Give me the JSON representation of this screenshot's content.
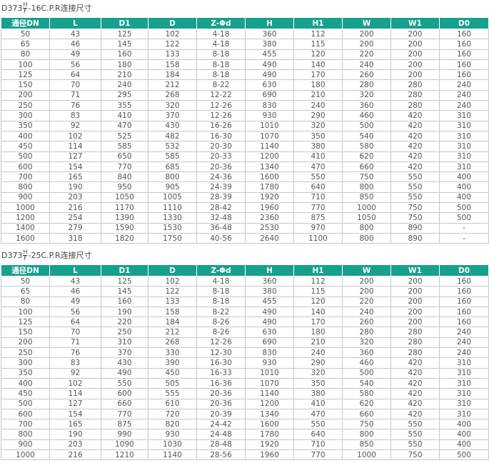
{
  "tables": [
    {
      "title": {
        "prefix": "D373",
        "top": "H",
        "bottom": "F",
        "suffix": "-16C.P.R连接尺寸"
      },
      "header": [
        "通径DN",
        "L",
        "D1",
        "D",
        "Z-Φd",
        "H",
        "H1",
        "W",
        "W1",
        "D0"
      ],
      "rows": [
        [
          50,
          43,
          125,
          102,
          "4-18",
          360,
          112,
          200,
          200,
          160
        ],
        [
          65,
          46,
          145,
          122,
          "4-18",
          380,
          115,
          200,
          200,
          160
        ],
        [
          80,
          49,
          160,
          133,
          "8-18",
          455,
          120,
          220,
          200,
          160
        ],
        [
          100,
          56,
          180,
          158,
          "8-18",
          490,
          140,
          240,
          200,
          160
        ],
        [
          125,
          64,
          210,
          184,
          "8-18",
          490,
          170,
          260,
          200,
          160
        ],
        [
          150,
          70,
          240,
          212,
          "8-22",
          630,
          180,
          280,
          280,
          240
        ],
        [
          200,
          71,
          295,
          268,
          "12-22",
          690,
          210,
          320,
          280,
          240
        ],
        [
          250,
          76,
          355,
          320,
          "12-26",
          830,
          240,
          360,
          280,
          240
        ],
        [
          300,
          83,
          410,
          370,
          "12-26",
          930,
          290,
          460,
          420,
          310
        ],
        [
          350,
          92,
          470,
          430,
          "16-26",
          1010,
          320,
          500,
          420,
          310
        ],
        [
          400,
          102,
          525,
          482,
          "16-30",
          1070,
          350,
          540,
          420,
          310
        ],
        [
          450,
          114,
          585,
          532,
          "20-30",
          1140,
          380,
          580,
          420,
          310
        ],
        [
          500,
          127,
          650,
          585,
          "20-33",
          1200,
          410,
          620,
          420,
          310
        ],
        [
          600,
          154,
          770,
          685,
          "20-36",
          1340,
          470,
          660,
          420,
          310
        ],
        [
          700,
          165,
          840,
          800,
          "24-36",
          1600,
          550,
          750,
          550,
          400
        ],
        [
          800,
          190,
          950,
          905,
          "24-39",
          1780,
          640,
          800,
          550,
          400
        ],
        [
          900,
          203,
          1050,
          1005,
          "28-39",
          1920,
          710,
          850,
          550,
          400
        ],
        [
          1000,
          216,
          1170,
          1110,
          "28-42",
          1960,
          770,
          1000,
          750,
          500
        ],
        [
          1200,
          254,
          1390,
          1330,
          "32-48",
          2360,
          875,
          1050,
          750,
          500
        ],
        [
          1400,
          279,
          1590,
          1530,
          "36-48",
          2530,
          970,
          800,
          890,
          "-"
        ],
        [
          1600,
          318,
          1820,
          1750,
          "40-56",
          2640,
          1100,
          800,
          890,
          "-"
        ]
      ]
    },
    {
      "title": {
        "prefix": "D373",
        "top": "H",
        "bottom": "F",
        "suffix": "-25C.P.R连接尺寸"
      },
      "header": [
        "通径DN",
        "L",
        "D1",
        "D",
        "Z-Φd",
        "H",
        "H1",
        "W",
        "W1",
        "D0"
      ],
      "rows": [
        [
          50,
          43,
          125,
          102,
          "4-18",
          360,
          112,
          200,
          200,
          160
        ],
        [
          65,
          46,
          145,
          122,
          "8-18",
          380,
          115,
          200,
          200,
          160
        ],
        [
          80,
          49,
          160,
          133,
          "8-18",
          455,
          120,
          220,
          200,
          160
        ],
        [
          100,
          56,
          190,
          158,
          "8-22",
          490,
          140,
          240,
          200,
          160
        ],
        [
          125,
          64,
          220,
          184,
          "8-26",
          490,
          170,
          260,
          200,
          160
        ],
        [
          150,
          70,
          250,
          212,
          "8-26",
          630,
          180,
          280,
          280,
          240
        ],
        [
          200,
          71,
          310,
          268,
          "12-26",
          690,
          210,
          320,
          280,
          240
        ],
        [
          250,
          76,
          370,
          330,
          "12-30",
          830,
          240,
          360,
          280,
          240
        ],
        [
          300,
          83,
          430,
          390,
          "16-30",
          930,
          290,
          460,
          420,
          310
        ],
        [
          350,
          92,
          490,
          450,
          "16-33",
          1010,
          320,
          500,
          420,
          310
        ],
        [
          400,
          102,
          550,
          505,
          "16-36",
          1070,
          350,
          540,
          420,
          310
        ],
        [
          450,
          114,
          600,
          555,
          "20-36",
          1140,
          380,
          580,
          420,
          310
        ],
        [
          500,
          127,
          660,
          610,
          "20-36",
          1200,
          410,
          620,
          420,
          310
        ],
        [
          600,
          154,
          770,
          720,
          "20-39",
          1340,
          470,
          660,
          420,
          310
        ],
        [
          700,
          165,
          875,
          820,
          "24-42",
          1600,
          550,
          750,
          550,
          400
        ],
        [
          800,
          190,
          990,
          930,
          "24-48",
          1780,
          640,
          800,
          550,
          400
        ],
        [
          900,
          203,
          1090,
          1030,
          "28-48",
          1920,
          710,
          850,
          550,
          400
        ],
        [
          1000,
          216,
          1210,
          1140,
          "28-56",
          1960,
          770,
          1000,
          750,
          500
        ]
      ]
    }
  ]
}
